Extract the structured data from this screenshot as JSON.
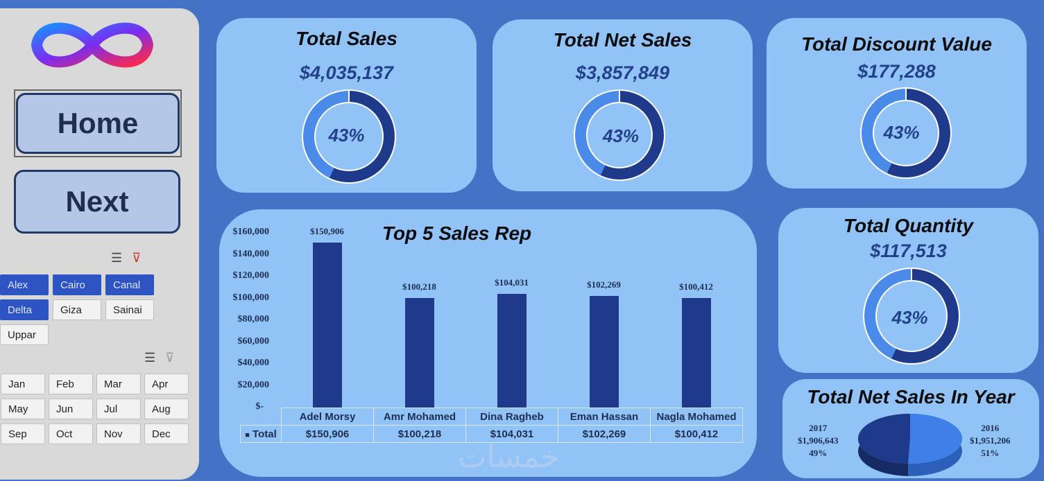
{
  "nav": {
    "home_label": "Home",
    "next_label": "Next"
  },
  "region_slicer": {
    "items": [
      {
        "label": "Alex",
        "selected": true
      },
      {
        "label": "Cairo",
        "selected": true
      },
      {
        "label": "Canal",
        "selected": true
      },
      {
        "label": "Delta",
        "selected": true
      },
      {
        "label": "Giza",
        "selected": false
      },
      {
        "label": "Sainai",
        "selected": false
      },
      {
        "label": "Uppar",
        "selected": false
      }
    ]
  },
  "month_slicer": {
    "items": [
      "Jan",
      "Feb",
      "Mar",
      "Apr",
      "May",
      "Jun",
      "Jul",
      "Aug",
      "Sep",
      "Oct",
      "Nov",
      "Dec"
    ]
  },
  "kpis": {
    "total_sales": {
      "title": "Total Sales",
      "value": "$4,035,137",
      "percent_label": "43%",
      "percent": 43
    },
    "total_net_sales": {
      "title": "Total Net Sales",
      "value": "$3,857,849",
      "percent_label": "43%",
      "percent": 43
    },
    "total_discount": {
      "title": "Total Discount Value",
      "value": "$177,288",
      "percent_label": "43%",
      "percent": 43
    },
    "total_quantity": {
      "title": "Total Quantity",
      "value": "$117,513",
      "percent_label": "43%",
      "percent": 43
    }
  },
  "colors": {
    "accent": "#1F3A8A",
    "light": "#4A8BEA",
    "card": "#91C3F7",
    "page": "#4472C4"
  },
  "chart_data": [
    {
      "type": "bar",
      "title": "Top 5 Sales Rep",
      "categories": [
        "Adel Morsy",
        "Amr Mohamed",
        "Dina Ragheb",
        "Eman Hassan",
        "Nagla Mohamed"
      ],
      "values": [
        150906,
        100218,
        104031,
        102269,
        100412
      ],
      "value_labels": [
        "$150,906",
        "$100,218",
        "$104,031",
        "$102,269",
        "$100,412"
      ],
      "yticks": [
        "$160,000",
        "$140,000",
        "$120,000",
        "$100,000",
        "$80,000",
        "$60,000",
        "$40,000",
        "$20,000",
        "$-"
      ],
      "ylim": [
        0,
        160000
      ],
      "table_series_label": "Total"
    },
    {
      "type": "pie",
      "title": "Total Net Sales In Year",
      "slices": [
        {
          "label": "2017",
          "value_label": "$1,906,643",
          "pct_label": "49%",
          "value": 1906643
        },
        {
          "label": "2016",
          "value_label": "$1,951,206",
          "pct_label": "51%",
          "value": 1951206
        }
      ]
    }
  ]
}
